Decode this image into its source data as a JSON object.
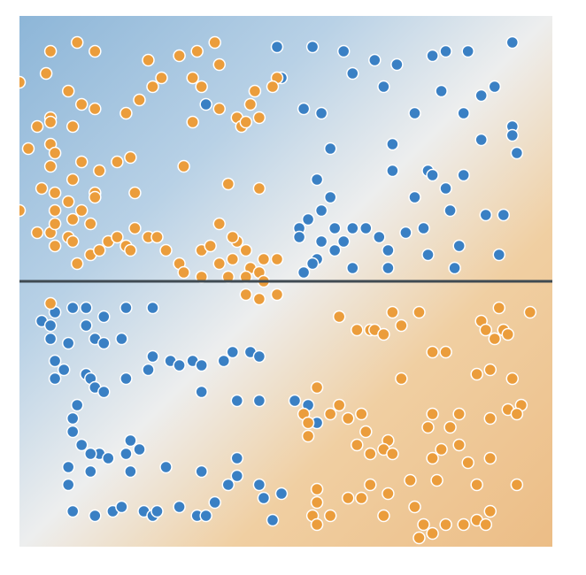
{
  "colors": {
    "blue": "#3a80c4",
    "orange": "#eb9d3c",
    "region_blue_deep": "#8db6d8",
    "region_blue": "#b8d1e6",
    "region_neutral": "#edeeee",
    "region_orange": "#f0cfa2",
    "region_orange_deep": "#ecbd86",
    "boundary_line": "#3f4a52"
  },
  "chart_data": {
    "type": "scatter",
    "title": "",
    "xlabel": "",
    "ylabel": "",
    "xlim": [
      -6,
      6
    ],
    "ylim": [
      -6,
      6
    ],
    "grid": false,
    "legend": "none",
    "boundary_line_y": 0,
    "series": [
      {
        "color": "blue",
        "points": [
          [
            -0.2,
            5.3
          ],
          [
            0.6,
            5.3
          ],
          [
            1.3,
            5.2
          ],
          [
            2.0,
            5.0
          ],
          [
            2.5,
            4.9
          ],
          [
            3.3,
            5.1
          ],
          [
            3.6,
            5.2
          ],
          [
            4.1,
            5.2
          ],
          [
            5.1,
            5.4
          ],
          [
            -0.1,
            4.6
          ],
          [
            1.5,
            4.7
          ],
          [
            2.2,
            4.4
          ],
          [
            3.5,
            4.3
          ],
          [
            4.4,
            4.2
          ],
          [
            4.7,
            4.4
          ],
          [
            -1.8,
            4.0
          ],
          [
            0.4,
            3.9
          ],
          [
            0.8,
            3.8
          ],
          [
            2.9,
            3.8
          ],
          [
            4.0,
            3.8
          ],
          [
            5.1,
            3.5
          ],
          [
            5.1,
            3.3
          ],
          [
            4.4,
            3.2
          ],
          [
            1.0,
            3.0
          ],
          [
            2.4,
            3.1
          ],
          [
            5.2,
            2.9
          ],
          [
            2.4,
            2.5
          ],
          [
            3.2,
            2.5
          ],
          [
            3.3,
            2.4
          ],
          [
            4.0,
            2.4
          ],
          [
            0.7,
            2.3
          ],
          [
            3.6,
            2.1
          ],
          [
            1.0,
            1.9
          ],
          [
            2.9,
            1.9
          ],
          [
            0.8,
            1.6
          ],
          [
            3.7,
            1.6
          ],
          [
            4.5,
            1.5
          ],
          [
            4.9,
            1.5
          ],
          [
            0.5,
            1.4
          ],
          [
            1.1,
            1.2
          ],
          [
            1.5,
            1.2
          ],
          [
            1.8,
            1.2
          ],
          [
            0.3,
            1.2
          ],
          [
            2.7,
            1.1
          ],
          [
            3.1,
            1.2
          ],
          [
            0.3,
            1.0
          ],
          [
            2.1,
            1.0
          ],
          [
            0.8,
            0.9
          ],
          [
            1.3,
            0.9
          ],
          [
            1.1,
            0.7
          ],
          [
            2.3,
            0.7
          ],
          [
            3.9,
            0.8
          ],
          [
            0.7,
            0.5
          ],
          [
            3.2,
            0.6
          ],
          [
            4.8,
            0.6
          ],
          [
            0.4,
            0.2
          ],
          [
            0.6,
            0.4
          ],
          [
            1.5,
            0.3
          ],
          [
            2.3,
            0.3
          ],
          [
            3.8,
            0.3
          ],
          [
            -5.2,
            -0.7
          ],
          [
            -4.8,
            -0.6
          ],
          [
            -4.5,
            -0.6
          ],
          [
            -4.1,
            -0.8
          ],
          [
            -3.6,
            -0.6
          ],
          [
            -5.5,
            -0.9
          ],
          [
            -5.3,
            -1.0
          ],
          [
            -4.5,
            -1.0
          ],
          [
            -3.0,
            -0.6
          ],
          [
            -3.7,
            -1.3
          ],
          [
            -5.3,
            -1.3
          ],
          [
            -4.9,
            -1.4
          ],
          [
            -4.3,
            -1.3
          ],
          [
            -4.1,
            -1.4
          ],
          [
            -5.2,
            -1.8
          ],
          [
            -3.0,
            -1.7
          ],
          [
            -2.6,
            -1.8
          ],
          [
            -2.4,
            -1.9
          ],
          [
            -2.1,
            -1.8
          ],
          [
            -1.9,
            -1.9
          ],
          [
            -1.2,
            -1.6
          ],
          [
            -0.8,
            -1.6
          ],
          [
            -0.6,
            -1.7
          ],
          [
            -5.2,
            -2.2
          ],
          [
            -5.0,
            -2.0
          ],
          [
            -4.5,
            -2.1
          ],
          [
            -4.4,
            -2.2
          ],
          [
            -3.6,
            -2.2
          ],
          [
            -3.1,
            -2.0
          ],
          [
            -1.4,
            -1.8
          ],
          [
            -4.3,
            -2.4
          ],
          [
            -4.1,
            -2.5
          ],
          [
            -1.9,
            -2.5
          ],
          [
            -0.6,
            -2.7
          ],
          [
            0.2,
            -2.7
          ],
          [
            -4.7,
            -2.8
          ],
          [
            -1.1,
            -2.7
          ],
          [
            0.5,
            -2.8
          ],
          [
            0.7,
            -3.2
          ],
          [
            -4.8,
            -3.1
          ],
          [
            -4.8,
            -3.4
          ],
          [
            -4.6,
            -3.7
          ],
          [
            -3.5,
            -3.6
          ],
          [
            -4.2,
            -3.9
          ],
          [
            -4.0,
            -4.0
          ],
          [
            -3.3,
            -3.8
          ],
          [
            -3.6,
            -3.9
          ],
          [
            -3.5,
            -4.3
          ],
          [
            -4.4,
            -3.9
          ],
          [
            -4.9,
            -4.2
          ],
          [
            -2.7,
            -4.2
          ],
          [
            -1.9,
            -4.3
          ],
          [
            -1.1,
            -4.0
          ],
          [
            -1.1,
            -4.4
          ],
          [
            -0.6,
            -4.6
          ],
          [
            -4.4,
            -4.3
          ],
          [
            -4.9,
            -4.6
          ],
          [
            -4.8,
            -5.2
          ],
          [
            -4.3,
            -5.3
          ],
          [
            -3.9,
            -5.2
          ],
          [
            -3.7,
            -5.1
          ],
          [
            -3.2,
            -5.2
          ],
          [
            -3.0,
            -5.3
          ],
          [
            -2.9,
            -5.2
          ],
          [
            -2.4,
            -5.1
          ],
          [
            -2.0,
            -5.3
          ],
          [
            -1.6,
            -5.0
          ],
          [
            -1.3,
            -4.6
          ],
          [
            -0.5,
            -4.9
          ],
          [
            -0.1,
            -4.8
          ],
          [
            -0.3,
            -5.4
          ],
          [
            -1.8,
            -5.3
          ]
        ]
      },
      {
        "color": "orange",
        "points": [
          [
            -5.3,
            5.2
          ],
          [
            -4.7,
            5.4
          ],
          [
            -4.3,
            5.2
          ],
          [
            -3.1,
            5.0
          ],
          [
            -2.4,
            5.1
          ],
          [
            -2.0,
            5.2
          ],
          [
            -1.6,
            5.4
          ],
          [
            -1.5,
            4.9
          ],
          [
            -2.8,
            4.6
          ],
          [
            -3.0,
            4.4
          ],
          [
            -2.1,
            4.6
          ],
          [
            -1.9,
            4.4
          ],
          [
            -0.7,
            4.3
          ],
          [
            -0.8,
            4.0
          ],
          [
            -0.2,
            4.6
          ],
          [
            -0.3,
            4.4
          ],
          [
            -6.0,
            4.5
          ],
          [
            -5.4,
            4.7
          ],
          [
            -4.9,
            4.3
          ],
          [
            -5.3,
            3.7
          ],
          [
            -5.6,
            3.5
          ],
          [
            -5.3,
            3.6
          ],
          [
            -4.8,
            3.5
          ],
          [
            -4.6,
            4.0
          ],
          [
            -4.3,
            3.9
          ],
          [
            -3.6,
            3.8
          ],
          [
            -3.3,
            4.1
          ],
          [
            -2.1,
            3.6
          ],
          [
            -1.5,
            3.9
          ],
          [
            -1.1,
            3.7
          ],
          [
            -1.0,
            3.5
          ],
          [
            -0.9,
            3.6
          ],
          [
            -0.6,
            3.7
          ],
          [
            -5.8,
            3.0
          ],
          [
            -5.3,
            3.1
          ],
          [
            -5.2,
            2.9
          ],
          [
            -5.3,
            2.6
          ],
          [
            -4.6,
            2.7
          ],
          [
            -4.2,
            2.5
          ],
          [
            -3.8,
            2.7
          ],
          [
            -3.5,
            2.8
          ],
          [
            -4.8,
            2.3
          ],
          [
            -5.5,
            2.1
          ],
          [
            -5.2,
            2.0
          ],
          [
            -4.3,
            2.0
          ],
          [
            -3.4,
            2.0
          ],
          [
            -2.3,
            2.6
          ],
          [
            -1.3,
            2.2
          ],
          [
            -0.6,
            2.1
          ],
          [
            -6.0,
            1.6
          ],
          [
            -5.2,
            1.6
          ],
          [
            -4.9,
            1.8
          ],
          [
            -4.6,
            1.6
          ],
          [
            -4.4,
            1.3
          ],
          [
            -4.8,
            1.4
          ],
          [
            -4.3,
            1.9
          ],
          [
            -5.6,
            1.1
          ],
          [
            -5.3,
            1.1
          ],
          [
            -5.2,
            0.8
          ],
          [
            -4.9,
            1.0
          ],
          [
            -4.8,
            0.9
          ],
          [
            -4.4,
            0.6
          ],
          [
            -4.0,
            0.9
          ],
          [
            -3.8,
            1.0
          ],
          [
            -3.6,
            0.8
          ],
          [
            -3.4,
            1.2
          ],
          [
            -3.1,
            1.0
          ],
          [
            -2.9,
            1.0
          ],
          [
            -3.5,
            0.7
          ],
          [
            -2.7,
            0.7
          ],
          [
            -2.4,
            0.4
          ],
          [
            -1.9,
            0.7
          ],
          [
            -1.5,
            1.3
          ],
          [
            -1.1,
            0.9
          ],
          [
            -1.2,
            1.0
          ],
          [
            -1.7,
            0.8
          ],
          [
            -1.5,
            0.4
          ],
          [
            -1.3,
            0.1
          ],
          [
            -0.9,
            0.7
          ],
          [
            -1.2,
            0.5
          ],
          [
            -0.8,
            0.3
          ],
          [
            -0.5,
            0.5
          ],
          [
            -0.2,
            0.5
          ],
          [
            -0.6,
            0.2
          ],
          [
            -0.5,
            0.0
          ],
          [
            -4.2,
            0.7
          ],
          [
            -2.3,
            0.2
          ],
          [
            -0.9,
            -0.3
          ],
          [
            -0.6,
            -0.4
          ],
          [
            -5.3,
            -0.5
          ],
          [
            -0.2,
            -0.3
          ],
          [
            -0.9,
            0.1
          ],
          [
            -1.9,
            0.1
          ],
          [
            -4.7,
            0.4
          ],
          [
            -5.2,
            1.3
          ],
          [
            4.8,
            -0.6
          ],
          [
            5.5,
            -0.7
          ],
          [
            4.4,
            -0.9
          ],
          [
            3.0,
            -0.7
          ],
          [
            1.2,
            -0.8
          ],
          [
            2.4,
            -0.7
          ],
          [
            1.6,
            -1.1
          ],
          [
            1.9,
            -1.1
          ],
          [
            2.0,
            -1.1
          ],
          [
            2.2,
            -1.2
          ],
          [
            2.6,
            -1.0
          ],
          [
            4.5,
            -1.1
          ],
          [
            4.9,
            -1.1
          ],
          [
            4.7,
            -1.3
          ],
          [
            5.0,
            -1.2
          ],
          [
            3.6,
            -1.6
          ],
          [
            3.3,
            -1.6
          ],
          [
            4.6,
            -2.0
          ],
          [
            4.3,
            -2.1
          ],
          [
            5.1,
            -2.2
          ],
          [
            5.3,
            -2.8
          ],
          [
            0.7,
            -2.4
          ],
          [
            2.6,
            -2.2
          ],
          [
            1.2,
            -2.8
          ],
          [
            0.4,
            -3.0
          ],
          [
            0.5,
            -3.2
          ],
          [
            1.7,
            -3.0
          ],
          [
            1.4,
            -3.1
          ],
          [
            1.0,
            -3.0
          ],
          [
            1.8,
            -3.4
          ],
          [
            0.5,
            -3.5
          ],
          [
            1.6,
            -3.7
          ],
          [
            1.9,
            -3.9
          ],
          [
            3.9,
            -3.0
          ],
          [
            4.6,
            -3.1
          ],
          [
            5.0,
            -2.9
          ],
          [
            5.2,
            -3.0
          ],
          [
            3.7,
            -3.3
          ],
          [
            2.3,
            -3.6
          ],
          [
            3.2,
            -3.3
          ],
          [
            3.3,
            -3.0
          ],
          [
            2.2,
            -3.8
          ],
          [
            2.4,
            -3.9
          ],
          [
            3.5,
            -3.8
          ],
          [
            3.9,
            -3.7
          ],
          [
            4.1,
            -4.1
          ],
          [
            3.3,
            -4.0
          ],
          [
            3.4,
            -4.5
          ],
          [
            2.8,
            -4.5
          ],
          [
            1.9,
            -4.6
          ],
          [
            4.3,
            -4.6
          ],
          [
            5.2,
            -4.6
          ],
          [
            4.6,
            -4.0
          ],
          [
            1.4,
            -4.9
          ],
          [
            1.7,
            -4.9
          ],
          [
            0.7,
            -4.7
          ],
          [
            0.7,
            -5.0
          ],
          [
            0.6,
            -5.3
          ],
          [
            0.7,
            -5.5
          ],
          [
            1.0,
            -5.3
          ],
          [
            2.3,
            -4.8
          ],
          [
            2.2,
            -5.3
          ],
          [
            2.9,
            -5.1
          ],
          [
            3.1,
            -5.5
          ],
          [
            3.6,
            -5.5
          ],
          [
            4.0,
            -5.5
          ],
          [
            4.3,
            -5.4
          ],
          [
            4.5,
            -5.5
          ],
          [
            4.6,
            -5.2
          ],
          [
            3.0,
            -5.8
          ],
          [
            3.3,
            -5.7
          ]
        ]
      }
    ]
  }
}
